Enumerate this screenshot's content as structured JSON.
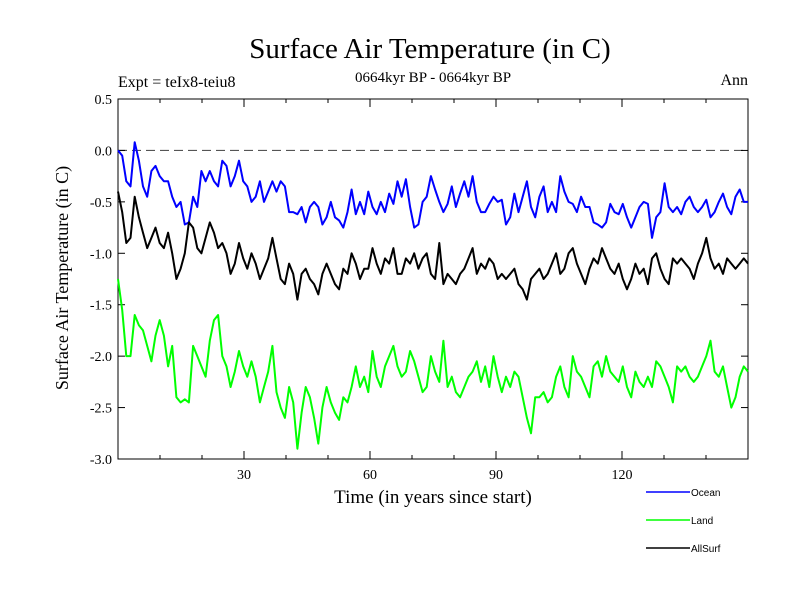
{
  "chart_data": {
    "type": "line",
    "title": "Surface Air Temperature (in C)",
    "subtitle": "0664kyr BP - 0664kyr BP",
    "expt_label": "Expt = teIx8-teiu8",
    "period_label": "Ann",
    "xlabel": "Time (in years since start)",
    "ylabel": "Surface Air Temperature (in C)",
    "xlim": [
      0,
      150
    ],
    "ylim": [
      -3.0,
      0.5
    ],
    "xticks": [
      30,
      60,
      90,
      120
    ],
    "xtick_labels": [
      "30",
      "60",
      "90",
      "120"
    ],
    "yticks": [
      0.5,
      0.0,
      -0.5,
      -1.0,
      -1.5,
      -2.0,
      -2.5,
      -3.0
    ],
    "ytick_labels": [
      "0.5",
      "0.0",
      "-0.5",
      "-1.0",
      "-1.5",
      "-2.0",
      "-2.5",
      "-3.0"
    ],
    "zero_line": 0.0,
    "legend_position": "bottom-right",
    "series": [
      {
        "name": "Ocean",
        "color": "#0000ff",
        "values": [
          0.0,
          -0.05,
          -0.3,
          -0.35,
          0.08,
          -0.1,
          -0.35,
          -0.45,
          -0.2,
          -0.15,
          -0.25,
          -0.3,
          -0.3,
          -0.45,
          -0.55,
          -0.5,
          -0.72,
          -0.7,
          -0.45,
          -0.55,
          -0.2,
          -0.3,
          -0.2,
          -0.3,
          -0.35,
          -0.1,
          -0.15,
          -0.35,
          -0.25,
          -0.1,
          -0.3,
          -0.35,
          -0.5,
          -0.45,
          -0.3,
          -0.5,
          -0.4,
          -0.3,
          -0.4,
          -0.3,
          -0.35,
          -0.6,
          -0.6,
          -0.62,
          -0.55,
          -0.7,
          -0.55,
          -0.5,
          -0.55,
          -0.72,
          -0.65,
          -0.5,
          -0.65,
          -0.68,
          -0.75,
          -0.6,
          -0.38,
          -0.62,
          -0.5,
          -0.62,
          -0.4,
          -0.55,
          -0.62,
          -0.5,
          -0.6,
          -0.42,
          -0.52,
          -0.3,
          -0.45,
          -0.28,
          -0.55,
          -0.75,
          -0.72,
          -0.5,
          -0.45,
          -0.25,
          -0.38,
          -0.5,
          -0.6,
          -0.52,
          -0.35,
          -0.55,
          -0.42,
          -0.3,
          -0.45,
          -0.25,
          -0.5,
          -0.6,
          -0.6,
          -0.52,
          -0.45,
          -0.5,
          -0.48,
          -0.72,
          -0.65,
          -0.42,
          -0.6,
          -0.45,
          -0.3,
          -0.55,
          -0.65,
          -0.45,
          -0.35,
          -0.6,
          -0.5,
          -0.6,
          -0.25,
          -0.4,
          -0.5,
          -0.52,
          -0.6,
          -0.45,
          -0.55,
          -0.55,
          -0.7,
          -0.72,
          -0.75,
          -0.7,
          -0.52,
          -0.6,
          -0.62,
          -0.52,
          -0.65,
          -0.75,
          -0.65,
          -0.55,
          -0.5,
          -0.52,
          -0.85,
          -0.65,
          -0.6,
          -0.32,
          -0.55,
          -0.6,
          -0.55,
          -0.62,
          -0.5,
          -0.45,
          -0.55,
          -0.6,
          -0.55,
          -0.48,
          -0.65,
          -0.6,
          -0.5,
          -0.42,
          -0.55,
          -0.62,
          -0.45,
          -0.38,
          -0.5,
          -0.5
        ]
      },
      {
        "name": "Land",
        "color": "#00ff00",
        "values": [
          -1.25,
          -1.55,
          -2.0,
          -2.0,
          -1.6,
          -1.7,
          -1.75,
          -1.9,
          -2.05,
          -1.8,
          -1.65,
          -1.8,
          -2.1,
          -1.9,
          -2.4,
          -2.45,
          -2.42,
          -2.45,
          -1.9,
          -2.0,
          -2.1,
          -2.2,
          -1.85,
          -1.65,
          -1.6,
          -2.0,
          -2.1,
          -2.3,
          -2.15,
          -1.95,
          -2.1,
          -2.2,
          -2.05,
          -2.2,
          -2.45,
          -2.3,
          -2.15,
          -1.9,
          -2.35,
          -2.5,
          -2.6,
          -2.3,
          -2.45,
          -2.9,
          -2.55,
          -2.3,
          -2.4,
          -2.6,
          -2.85,
          -2.5,
          -2.3,
          -2.45,
          -2.55,
          -2.62,
          -2.4,
          -2.45,
          -2.3,
          -2.1,
          -2.3,
          -2.2,
          -2.35,
          -1.95,
          -2.2,
          -2.3,
          -2.1,
          -2.0,
          -1.9,
          -2.1,
          -2.2,
          -2.15,
          -1.95,
          -2.05,
          -2.2,
          -2.35,
          -2.3,
          -2.0,
          -2.15,
          -2.25,
          -1.85,
          -2.3,
          -2.2,
          -2.35,
          -2.4,
          -2.3,
          -2.2,
          -2.15,
          -2.05,
          -2.25,
          -2.1,
          -2.3,
          -2.0,
          -2.2,
          -2.35,
          -2.2,
          -2.3,
          -2.15,
          -2.2,
          -2.4,
          -2.6,
          -2.75,
          -2.4,
          -2.4,
          -2.35,
          -2.45,
          -2.4,
          -2.2,
          -2.1,
          -2.3,
          -2.4,
          -2.0,
          -2.15,
          -2.2,
          -2.3,
          -2.4,
          -2.1,
          -2.05,
          -2.2,
          -2.0,
          -2.15,
          -2.2,
          -2.25,
          -2.1,
          -2.3,
          -2.4,
          -2.15,
          -2.25,
          -2.3,
          -2.2,
          -2.3,
          -2.05,
          -2.1,
          -2.2,
          -2.3,
          -2.45,
          -2.1,
          -2.15,
          -2.1,
          -2.2,
          -2.25,
          -2.2,
          -2.1,
          -2.0,
          -1.85,
          -2.15,
          -2.2,
          -2.1,
          -2.3,
          -2.5,
          -2.4,
          -2.2,
          -2.1,
          -2.15
        ]
      },
      {
        "name": "AllSurf",
        "color": "#000000",
        "values": [
          -0.4,
          -0.6,
          -0.9,
          -0.85,
          -0.45,
          -0.65,
          -0.8,
          -0.95,
          -0.85,
          -0.75,
          -0.9,
          -0.95,
          -0.8,
          -1.0,
          -1.25,
          -1.15,
          -1.0,
          -0.7,
          -0.75,
          -0.95,
          -1.0,
          -0.85,
          -0.7,
          -0.8,
          -0.95,
          -0.9,
          -1.0,
          -1.2,
          -1.1,
          -0.9,
          -1.05,
          -1.15,
          -1.0,
          -1.1,
          -1.25,
          -1.15,
          -1.05,
          -0.85,
          -1.05,
          -1.25,
          -1.3,
          -1.1,
          -1.2,
          -1.45,
          -1.2,
          -1.15,
          -1.25,
          -1.3,
          -1.4,
          -1.2,
          -1.1,
          -1.2,
          -1.3,
          -1.35,
          -1.15,
          -1.2,
          -1.0,
          -1.1,
          -1.25,
          -1.15,
          -1.15,
          -0.95,
          -1.1,
          -1.2,
          -1.05,
          -1.1,
          -0.95,
          -1.2,
          -1.2,
          -1.05,
          -1.1,
          -1.0,
          -1.15,
          -1.05,
          -1.0,
          -1.2,
          -1.25,
          -0.9,
          -1.3,
          -1.2,
          -1.25,
          -1.3,
          -1.2,
          -1.15,
          -1.05,
          -0.95,
          -1.2,
          -1.1,
          -1.15,
          -1.05,
          -1.1,
          -1.25,
          -1.2,
          -1.25,
          -1.2,
          -1.15,
          -1.3,
          -1.35,
          -1.45,
          -1.25,
          -1.2,
          -1.15,
          -1.25,
          -1.2,
          -1.1,
          -1.0,
          -1.2,
          -1.15,
          -1.0,
          -0.95,
          -1.1,
          -1.2,
          -1.3,
          -1.15,
          -1.05,
          -1.1,
          -0.95,
          -1.05,
          -1.15,
          -1.2,
          -1.1,
          -1.25,
          -1.35,
          -1.25,
          -1.1,
          -1.2,
          -1.15,
          -1.3,
          -1.05,
          -1.0,
          -1.15,
          -1.25,
          -1.3,
          -1.05,
          -1.1,
          -1.05,
          -1.1,
          -1.15,
          -1.25,
          -1.1,
          -1.0,
          -0.85,
          -1.05,
          -1.15,
          -1.1,
          -1.2,
          -1.05,
          -1.1,
          -1.15,
          -1.1,
          -1.05,
          -1.1
        ]
      }
    ]
  }
}
